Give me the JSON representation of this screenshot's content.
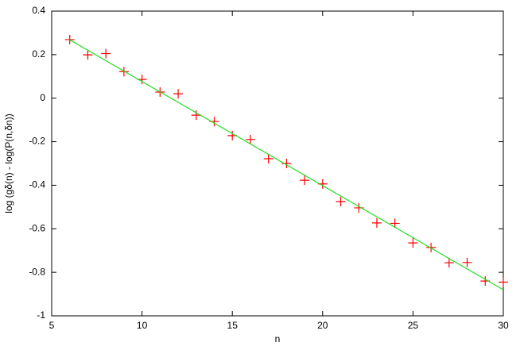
{
  "chart_data": {
    "type": "scatter",
    "xlabel": "n",
    "ylabel": "log (gδ(n) - log(P(n,δn))",
    "xlim": [
      5,
      30
    ],
    "xticks": [
      5,
      10,
      15,
      20,
      25,
      30
    ],
    "ylim": [
      -1,
      0.4
    ],
    "yticks": [
      -1,
      -0.8,
      -0.6,
      -0.4,
      -0.2,
      0,
      0.2,
      0.4
    ],
    "series": [
      {
        "style": "points",
        "color": "#ff0000",
        "x": [
          6,
          7,
          8,
          9,
          10,
          11,
          12,
          13,
          14,
          15,
          16,
          17,
          18,
          19,
          20,
          21,
          22,
          23,
          24,
          25,
          26,
          27,
          28,
          29,
          30
        ],
        "values": [
          0.269,
          0.199,
          0.205,
          0.122,
          0.086,
          0.028,
          0.02,
          -0.078,
          -0.107,
          -0.172,
          -0.19,
          -0.278,
          -0.3,
          -0.377,
          -0.394,
          -0.475,
          -0.504,
          -0.573,
          -0.575,
          -0.665,
          -0.686,
          -0.756,
          -0.755,
          -0.84,
          -0.845
        ]
      },
      {
        "style": "line",
        "color": "#22dd22",
        "x": [
          6,
          30
        ],
        "values": [
          0.268,
          -0.88
        ]
      }
    ]
  }
}
